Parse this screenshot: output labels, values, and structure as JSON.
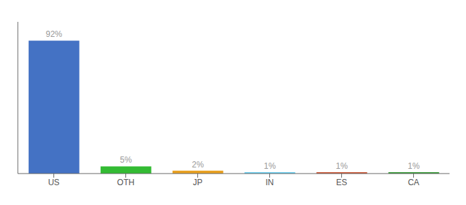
{
  "chart_data": {
    "type": "bar",
    "categories": [
      "US",
      "OTH",
      "JP",
      "IN",
      "ES",
      "CA"
    ],
    "values": [
      92,
      5,
      2,
      1,
      1,
      1
    ],
    "value_labels": [
      "92%",
      "5%",
      "2%",
      "1%",
      "1%",
      "1%"
    ],
    "colors": [
      "#4472c4",
      "#33bb33",
      "#e8a020",
      "#66ccee",
      "#cc5533",
      "#339933"
    ],
    "ylim": [
      0,
      105
    ],
    "data_labels": true,
    "tick_labels": "x",
    "grid": false
  }
}
